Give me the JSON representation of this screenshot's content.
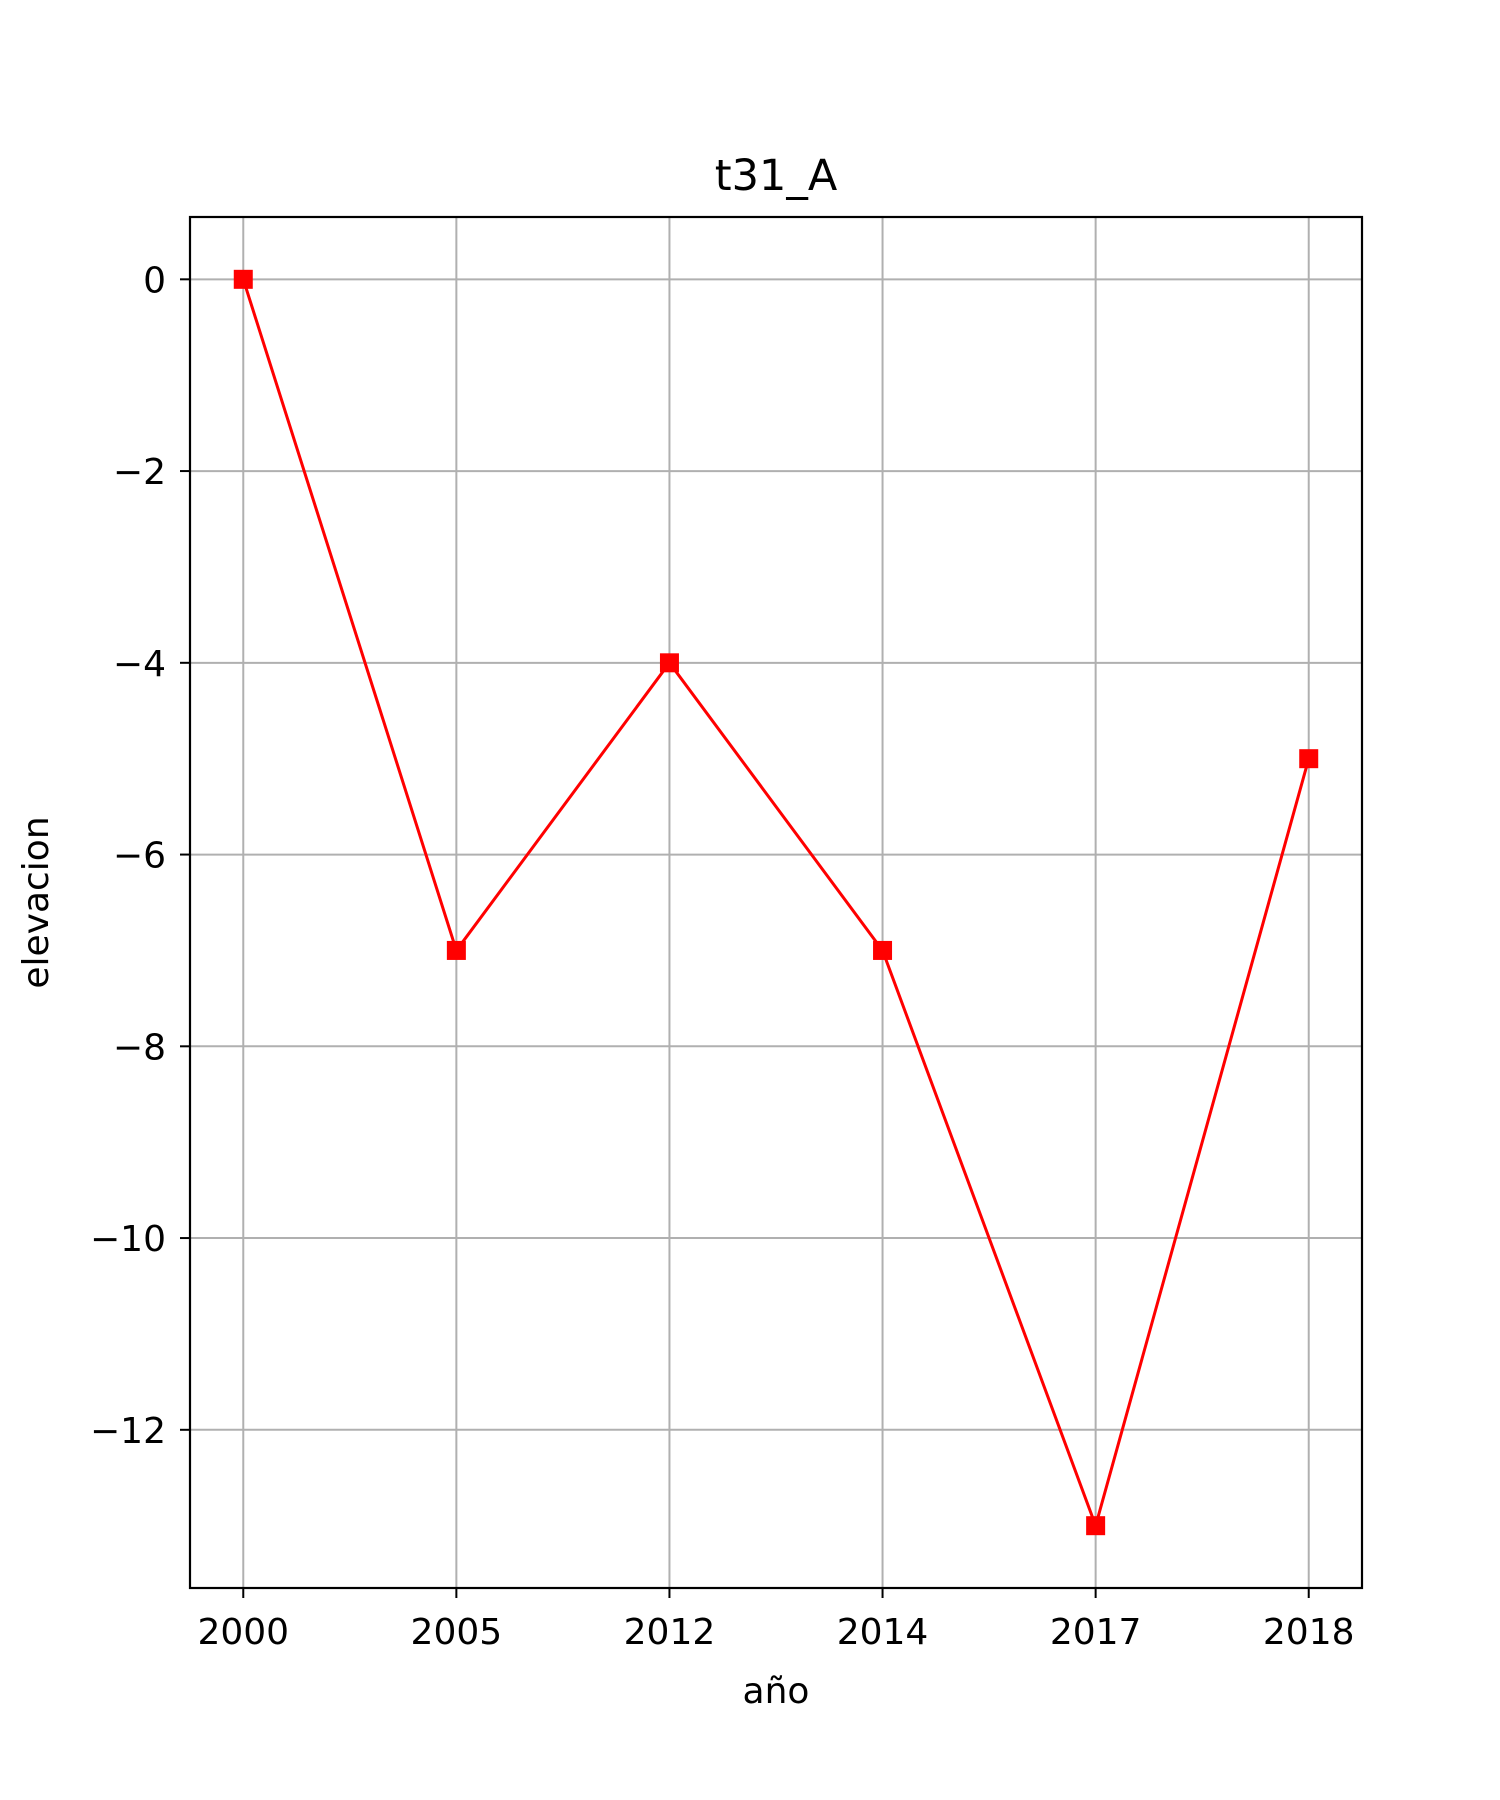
{
  "chart_data": {
    "type": "line",
    "title": "t31_A",
    "xlabel": "año",
    "ylabel": "elevacion",
    "categories": [
      "2000",
      "2005",
      "2012",
      "2014",
      "2017",
      "2018"
    ],
    "series": [
      {
        "values": [
          0,
          -7,
          -4,
          -7,
          -13,
          -5
        ],
        "color": "#ff0000",
        "marker": "square"
      }
    ],
    "ylim": [
      -13.65,
      0.65
    ],
    "yticks": [
      0,
      -2,
      -4,
      -6,
      -8,
      -10,
      -12
    ],
    "ytick_labels": [
      "0",
      "−2",
      "−4",
      "−6",
      "−8",
      "−10",
      "−12"
    ],
    "grid": true,
    "grid_color": "#b0b0b0",
    "line_color": "#ff0000"
  }
}
